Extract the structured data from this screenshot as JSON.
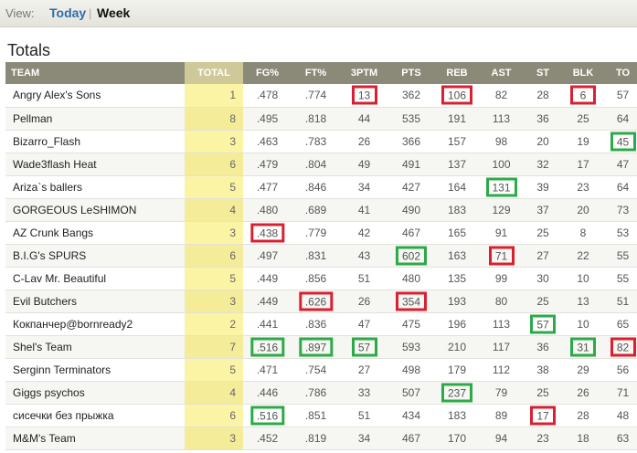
{
  "view": {
    "label": "View:",
    "tabs": [
      "Today",
      "Week"
    ],
    "separator": "|",
    "active": "Week"
  },
  "title": "Totals",
  "columns": [
    "TEAM",
    "TOTAL",
    "FG%",
    "FT%",
    "3PTM",
    "PTS",
    "REB",
    "AST",
    "ST",
    "BLK",
    "TO"
  ],
  "colors": {
    "red_box": "#d92030",
    "green_box": "#2daa48",
    "total_bg": "#fbf4a5",
    "header_bg": "#8b8a78"
  },
  "rows": [
    {
      "team": "Angry Alex's Sons",
      "total": "1",
      "stats": [
        ".478",
        ".774",
        "13",
        "362",
        "106",
        "82",
        "28",
        "6",
        "57"
      ],
      "red": [
        2,
        4,
        7
      ],
      "green": []
    },
    {
      "team": "Pellman",
      "total": "8",
      "stats": [
        ".495",
        ".818",
        "44",
        "535",
        "191",
        "113",
        "36",
        "25",
        "64"
      ],
      "red": [],
      "green": []
    },
    {
      "team": "Bizarro_Flash",
      "total": "3",
      "stats": [
        ".463",
        ".783",
        "26",
        "366",
        "157",
        "98",
        "20",
        "19",
        "45"
      ],
      "red": [],
      "green": [
        8
      ]
    },
    {
      "team": "Wade3flash Heat",
      "total": "6",
      "stats": [
        ".479",
        ".804",
        "49",
        "491",
        "137",
        "100",
        "32",
        "17",
        "47"
      ],
      "red": [],
      "green": []
    },
    {
      "team": "Ariza`s ballers",
      "total": "5",
      "stats": [
        ".477",
        ".846",
        "34",
        "427",
        "164",
        "131",
        "39",
        "23",
        "64"
      ],
      "red": [],
      "green": [
        5
      ]
    },
    {
      "team": "GORGEOUS LeSHIMON",
      "total": "4",
      "stats": [
        ".480",
        ".689",
        "41",
        "490",
        "183",
        "129",
        "37",
        "20",
        "73"
      ],
      "red": [],
      "green": []
    },
    {
      "team": "AZ Crunk Bangs",
      "total": "3",
      "stats": [
        ".438",
        ".779",
        "42",
        "467",
        "165",
        "91",
        "25",
        "8",
        "53"
      ],
      "red": [
        0
      ],
      "green": []
    },
    {
      "team": "B.I.G's SPURS",
      "total": "6",
      "stats": [
        ".497",
        ".831",
        "43",
        "602",
        "163",
        "71",
        "27",
        "22",
        "55"
      ],
      "red": [
        5
      ],
      "green": [
        3
      ]
    },
    {
      "team": "C-Lav Mr. Beautiful",
      "total": "5",
      "stats": [
        ".449",
        ".856",
        "51",
        "480",
        "135",
        "99",
        "30",
        "10",
        "55"
      ],
      "red": [],
      "green": []
    },
    {
      "team": "Evil Butchers",
      "total": "3",
      "stats": [
        ".449",
        ".626",
        "26",
        "354",
        "193",
        "80",
        "25",
        "13",
        "51"
      ],
      "red": [
        1,
        3
      ],
      "green": []
    },
    {
      "team": "Кокпанчер@bornready2",
      "total": "2",
      "stats": [
        ".441",
        ".836",
        "47",
        "475",
        "196",
        "113",
        "57",
        "10",
        "65"
      ],
      "red": [],
      "green": [
        6
      ]
    },
    {
      "team": "Shel's Team",
      "total": "7",
      "stats": [
        ".516",
        ".897",
        "57",
        "593",
        "210",
        "117",
        "36",
        "31",
        "82"
      ],
      "red": [
        8
      ],
      "green": [
        0,
        1,
        2,
        7
      ]
    },
    {
      "team": "Serginn Terminators",
      "total": "5",
      "stats": [
        ".471",
        ".754",
        "27",
        "498",
        "179",
        "112",
        "38",
        "29",
        "56"
      ],
      "red": [],
      "green": []
    },
    {
      "team": "Giggs psychos",
      "total": "4",
      "stats": [
        ".446",
        ".786",
        "33",
        "507",
        "237",
        "79",
        "25",
        "26",
        "71"
      ],
      "red": [],
      "green": [
        4
      ]
    },
    {
      "team": "сисечки без прыжка",
      "total": "6",
      "stats": [
        ".516",
        ".851",
        "51",
        "434",
        "183",
        "89",
        "17",
        "28",
        "48"
      ],
      "red": [
        6
      ],
      "green": [
        0
      ]
    },
    {
      "team": "M&M's Team",
      "total": "3",
      "stats": [
        ".452",
        ".819",
        "34",
        "467",
        "170",
        "94",
        "23",
        "18",
        "63"
      ],
      "red": [],
      "green": []
    }
  ]
}
